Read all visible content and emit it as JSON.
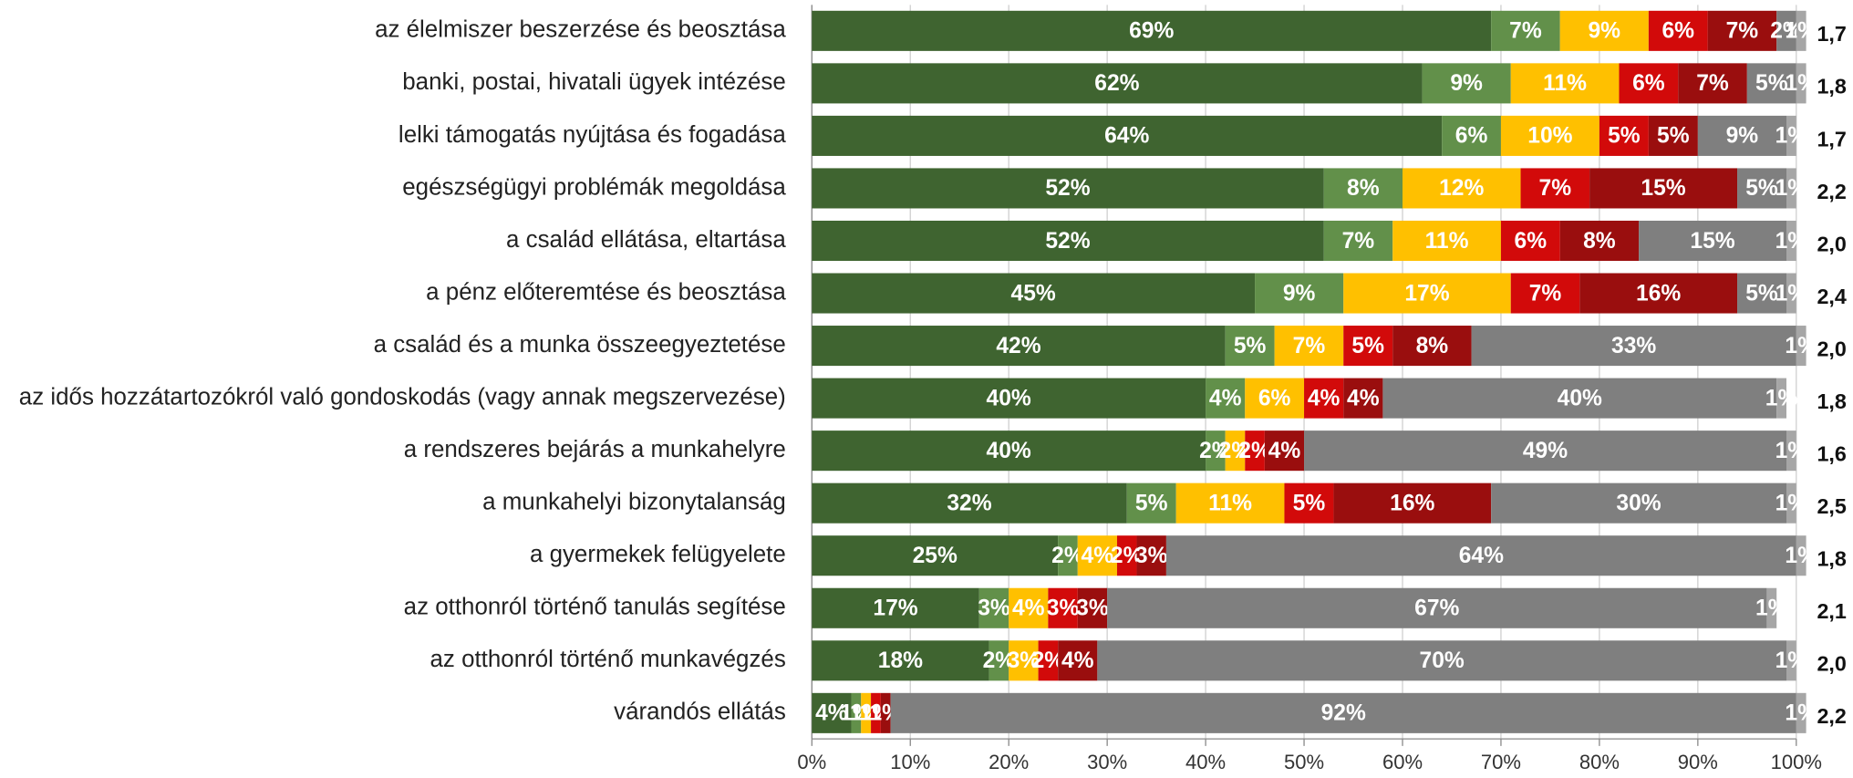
{
  "chart_data": {
    "type": "stacked_bar_horizontal",
    "categories": [
      "az élelmiszer beszerzése és beosztása",
      "banki, postai, hivatali ügyek intézése",
      "lelki támogatás nyújtása és fogadása",
      "egészségügyi problémák megoldása",
      "a család ellátása, eltartása",
      "a pénz előteremtése és beosztása",
      "a család és a munka összeegyeztetése",
      "az idős hozzátartozókról való gondoskodás (vagy annak megszervezése)",
      "a rendszeres bejárás a munkahelyre",
      "a munkahelyi bizonytalanság",
      "a gyermekek felügyelete",
      "az otthonról történő tanulás segítése",
      "az otthonról történő munkavégzés",
      "várandós ellátás"
    ],
    "series": [
      {
        "color": "#3f6430",
        "values": [
          69,
          62,
          64,
          52,
          52,
          45,
          42,
          40,
          40,
          32,
          25,
          17,
          18,
          4
        ],
        "value_labels": [
          "69%",
          "62%",
          "64%",
          "52%",
          "52%",
          "45%",
          "42%",
          "40%",
          "40%",
          "32%",
          "25%",
          "17%",
          "18%",
          "4%"
        ]
      },
      {
        "color": "#62904a",
        "values": [
          7,
          9,
          6,
          8,
          7,
          9,
          5,
          4,
          2,
          5,
          2,
          3,
          2,
          1
        ],
        "value_labels": [
          "7%",
          "9%",
          "6%",
          "8%",
          "7%",
          "9%",
          "5%",
          "4%",
          "2%",
          "5%",
          "2%",
          "3%",
          "2%",
          "1%"
        ]
      },
      {
        "color": "#ffc000",
        "values": [
          9,
          11,
          10,
          12,
          11,
          17,
          7,
          6,
          2,
          11,
          4,
          4,
          3,
          1
        ],
        "value_labels": [
          "9%",
          "11%",
          "10%",
          "12%",
          "11%",
          "17%",
          "7%",
          "6%",
          "2%",
          "11%",
          "4%",
          "4%",
          "3%",
          "1%"
        ]
      },
      {
        "color": "#d20a0a",
        "values": [
          6,
          6,
          5,
          7,
          6,
          7,
          5,
          4,
          2,
          5,
          2,
          3,
          2,
          1
        ],
        "value_labels": [
          "6%",
          "6%",
          "5%",
          "7%",
          "6%",
          "7%",
          "5%",
          "4%",
          "2%",
          "5%",
          "2%",
          "3%",
          "2%",
          "1%"
        ]
      },
      {
        "color": "#9a0e0e",
        "values": [
          7,
          7,
          5,
          15,
          8,
          16,
          8,
          4,
          4,
          16,
          3,
          3,
          4,
          1
        ],
        "value_labels": [
          "7%",
          "7%",
          "5%",
          "15%",
          "8%",
          "16%",
          "8%",
          "4%",
          "4%",
          "16%",
          "3%",
          "3%",
          "4%",
          "1%"
        ]
      },
      {
        "color": "#7f7f7f",
        "values": [
          2,
          5,
          9,
          5,
          15,
          5,
          33,
          40,
          49,
          30,
          64,
          67,
          70,
          92
        ],
        "value_labels": [
          "2%",
          "5%",
          "9%",
          "5%",
          "15%",
          "5%",
          "33%",
          "40%",
          "49%",
          "30%",
          "64%",
          "67%",
          "70%",
          "92%"
        ]
      },
      {
        "color": "#a6a6a6",
        "values": [
          1,
          1,
          1,
          1,
          1,
          1,
          1,
          1,
          1,
          1,
          1,
          1,
          1,
          1
        ],
        "value_labels": [
          "1%",
          "1%",
          "1%",
          "1%",
          "1%",
          "1%",
          "1%",
          "1%",
          "1%",
          "1%",
          "1%",
          "1%",
          "1%",
          "1%"
        ]
      }
    ],
    "right_labels": [
      "1,7",
      "1,8",
      "1,7",
      "2,2",
      "2,0",
      "2,4",
      "2,0",
      "1,8",
      "1,6",
      "2,5",
      "1,8",
      "2,1",
      "2,0",
      "2,2"
    ],
    "xlim": [
      0,
      100
    ],
    "xticks": [
      {
        "value": 0,
        "label": "0%"
      },
      {
        "value": 10,
        "label": "10%"
      },
      {
        "value": 20,
        "label": "20%"
      },
      {
        "value": 30,
        "label": "30%"
      },
      {
        "value": 40,
        "label": "40%"
      },
      {
        "value": 50,
        "label": "50%"
      },
      {
        "value": 60,
        "label": "60%"
      },
      {
        "value": 70,
        "label": "70%"
      },
      {
        "value": 80,
        "label": "80%"
      },
      {
        "value": 90,
        "label": "90%"
      },
      {
        "value": 100,
        "label": "100%"
      }
    ],
    "grid": true
  }
}
